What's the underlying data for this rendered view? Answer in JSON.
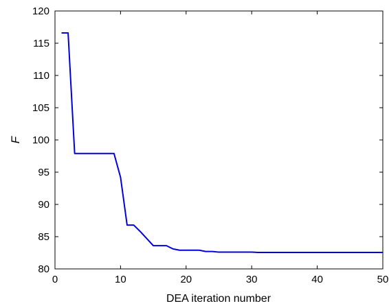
{
  "chart_data": {
    "type": "line",
    "title": "",
    "xlabel": "DEA iteration number",
    "ylabel": "F",
    "xlim": [
      0,
      50
    ],
    "ylim": [
      80,
      120
    ],
    "xticks": [
      0,
      10,
      20,
      30,
      40,
      50
    ],
    "yticks": [
      80,
      85,
      90,
      95,
      100,
      105,
      110,
      115,
      120
    ],
    "grid": false,
    "line_color": "#0000dd",
    "series": [
      {
        "x": [
          1,
          2,
          3,
          4,
          5,
          6,
          7,
          8,
          9,
          10,
          11,
          12,
          13,
          14,
          15,
          16,
          17,
          18,
          19,
          20,
          21,
          22,
          23,
          24,
          25,
          26,
          27,
          28,
          29,
          30,
          31,
          32,
          33,
          34,
          35,
          36,
          37,
          38,
          39,
          40,
          41,
          42,
          43,
          44,
          45,
          46,
          47,
          48,
          49,
          50
        ],
        "values": [
          116.6,
          116.6,
          97.9,
          97.9,
          97.9,
          97.9,
          97.9,
          97.9,
          97.9,
          94.2,
          86.8,
          86.8,
          85.8,
          84.7,
          83.6,
          83.6,
          83.6,
          83.1,
          82.9,
          82.9,
          82.9,
          82.9,
          82.7,
          82.7,
          82.6,
          82.6,
          82.6,
          82.6,
          82.6,
          82.6,
          82.55,
          82.55,
          82.55,
          82.55,
          82.55,
          82.55,
          82.55,
          82.55,
          82.55,
          82.55,
          82.55,
          82.55,
          82.55,
          82.55,
          82.55,
          82.55,
          82.55,
          82.55,
          82.55,
          82.55
        ]
      }
    ]
  }
}
